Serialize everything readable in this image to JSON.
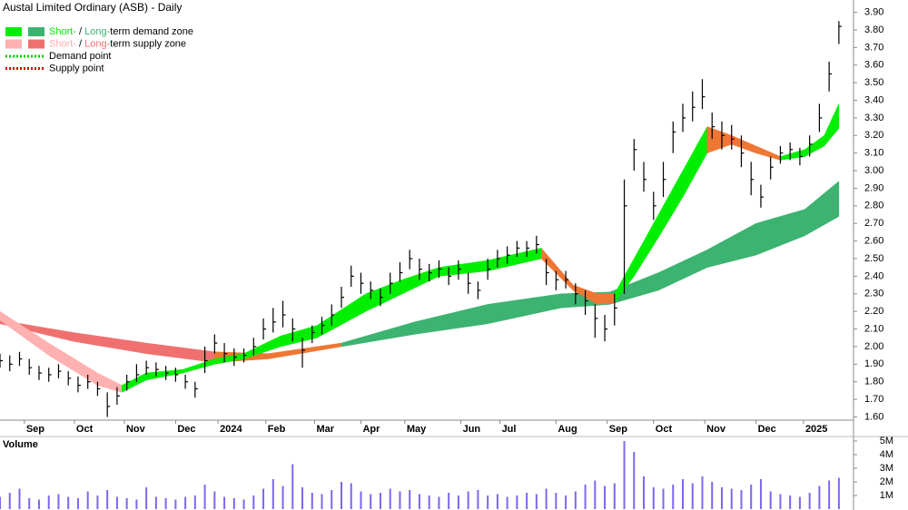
{
  "chart_data": {
    "type": "ohlc",
    "title": "Austal Limited Ordinary (ASB) - Daily",
    "legend": [
      {
        "label_parts": [
          "Short-",
          " / ",
          "Long-",
          "term demand zone"
        ],
        "colors": [
          "#00ee00",
          "#3cb371"
        ]
      },
      {
        "label_parts": [
          "Short-",
          " / ",
          "Long-",
          "term supply zone"
        ],
        "colors": [
          "#ffb0b0",
          "#f07070"
        ]
      },
      {
        "label": "Demand point",
        "color": "#00cc00",
        "style": "dotted"
      },
      {
        "label": "Supply point",
        "color": "#dd0000",
        "style": "dotted"
      }
    ],
    "xlim": [
      0,
      350
    ],
    "xticks": [
      {
        "value": 10,
        "label": "Sep"
      },
      {
        "value": 30.5,
        "label": "Oct"
      },
      {
        "value": 51,
        "label": "Nov"
      },
      {
        "value": 72,
        "label": "Dec"
      },
      {
        "value": 89.4,
        "label": "2024"
      },
      {
        "value": 109,
        "label": "Feb"
      },
      {
        "value": 129,
        "label": "Mar"
      },
      {
        "value": 148,
        "label": "Apr"
      },
      {
        "value": 166,
        "label": "May"
      },
      {
        "value": 189,
        "label": "Jun"
      },
      {
        "value": 205,
        "label": "Jul"
      },
      {
        "value": 228,
        "label": "Aug"
      },
      {
        "value": 249,
        "label": "Sep"
      },
      {
        "value": 268,
        "label": "Oct"
      },
      {
        "value": 289,
        "label": "Nov"
      },
      {
        "value": 310,
        "label": "Dec"
      },
      {
        "value": 329.5,
        "label": "2025"
      }
    ],
    "ylim": [
      1.52,
      3.97
    ],
    "yticks": [
      {
        "value": 1.6,
        "label": "1.60"
      },
      {
        "value": 1.7,
        "label": "1.70"
      },
      {
        "value": 1.8,
        "label": "1.80"
      },
      {
        "value": 1.9,
        "label": "1.90"
      },
      {
        "value": 2.0,
        "label": "2.00"
      },
      {
        "value": 2.1,
        "label": "2.10"
      },
      {
        "value": 2.2,
        "label": "2.20"
      },
      {
        "value": 2.3,
        "label": "2.30"
      },
      {
        "value": 2.4,
        "label": "2.40"
      },
      {
        "value": 2.5,
        "label": "2.50"
      },
      {
        "value": 2.6,
        "label": "2.60"
      },
      {
        "value": 2.7,
        "label": "2.70"
      },
      {
        "value": 2.8,
        "label": "2.80"
      },
      {
        "value": 2.9,
        "label": "2.90"
      },
      {
        "value": 3.0,
        "label": "3.00"
      },
      {
        "value": 3.1,
        "label": "3.10"
      },
      {
        "value": 3.2,
        "label": "3.20"
      },
      {
        "value": 3.3,
        "label": "3.30"
      },
      {
        "value": 3.4,
        "label": "3.40"
      },
      {
        "value": 3.5,
        "label": "3.50"
      },
      {
        "value": 3.6,
        "label": "3.60"
      },
      {
        "value": 3.7,
        "label": "3.70"
      },
      {
        "value": 3.8,
        "label": "3.80"
      },
      {
        "value": 3.9,
        "label": "3.90"
      }
    ],
    "bar_color": "#000000",
    "x": [
      0,
      4,
      8,
      12,
      16,
      20,
      24,
      28,
      32,
      36,
      40,
      44,
      48,
      52,
      56,
      60,
      64,
      68,
      72,
      76,
      80,
      84,
      88,
      92,
      96,
      100,
      104,
      108,
      112,
      116,
      120,
      124,
      128,
      132,
      136,
      140,
      144,
      148,
      152,
      156,
      160,
      164,
      168,
      172,
      176,
      180,
      184,
      188,
      192,
      196,
      200,
      204,
      208,
      212,
      216,
      220,
      224,
      228,
      232,
      236,
      240,
      244,
      248,
      252,
      256,
      260,
      264,
      268,
      272,
      276,
      280,
      284,
      288,
      292,
      296,
      300,
      304,
      308,
      312,
      316,
      320,
      324,
      328,
      332,
      336,
      340,
      344
    ],
    "high": [
      1.96,
      1.95,
      1.97,
      1.93,
      1.89,
      1.88,
      1.9,
      1.86,
      1.83,
      1.84,
      1.8,
      1.74,
      1.77,
      1.84,
      1.9,
      1.92,
      1.91,
      1.89,
      1.88,
      1.84,
      1.8,
      2.0,
      2.07,
      2.02,
      1.99,
      1.99,
      2.05,
      2.16,
      2.22,
      2.26,
      2.16,
      2.05,
      2.12,
      2.17,
      2.24,
      2.34,
      2.46,
      2.42,
      2.37,
      2.33,
      2.42,
      2.48,
      2.55,
      2.5,
      2.47,
      2.49,
      2.45,
      2.49,
      2.42,
      2.37,
      2.5,
      2.55,
      2.57,
      2.6,
      2.6,
      2.63,
      2.5,
      2.43,
      2.43,
      2.36,
      2.32,
      2.24,
      2.18,
      2.3,
      2.95,
      3.18,
      3.05,
      2.88,
      3.05,
      3.28,
      3.38,
      3.45,
      3.52,
      3.33,
      3.28,
      3.26,
      3.2,
      3.05,
      2.92,
      3.08,
      3.14,
      3.16,
      3.13,
      3.2,
      3.38,
      3.62,
      3.85
    ],
    "low": [
      1.88,
      1.86,
      1.89,
      1.84,
      1.81,
      1.8,
      1.82,
      1.78,
      1.74,
      1.76,
      1.72,
      1.6,
      1.67,
      1.75,
      1.8,
      1.84,
      1.83,
      1.81,
      1.8,
      1.76,
      1.71,
      1.85,
      1.96,
      1.91,
      1.89,
      1.91,
      1.95,
      2.04,
      2.08,
      2.11,
      2.03,
      1.88,
      2.02,
      2.07,
      2.12,
      2.22,
      2.34,
      2.3,
      2.27,
      2.23,
      2.3,
      2.37,
      2.44,
      2.38,
      2.37,
      2.39,
      2.35,
      2.38,
      2.3,
      2.27,
      2.38,
      2.45,
      2.47,
      2.51,
      2.51,
      2.53,
      2.35,
      2.32,
      2.33,
      2.24,
      2.18,
      2.05,
      2.03,
      2.12,
      2.3,
      3.0,
      2.88,
      2.72,
      2.85,
      3.1,
      3.22,
      3.28,
      3.35,
      3.18,
      3.12,
      3.12,
      3.02,
      2.86,
      2.79,
      2.95,
      3.04,
      3.06,
      3.03,
      3.08,
      3.22,
      3.45,
      3.72
    ],
    "close": [
      1.92,
      1.9,
      1.93,
      1.88,
      1.85,
      1.84,
      1.86,
      1.82,
      1.78,
      1.8,
      1.76,
      1.66,
      1.72,
      1.8,
      1.84,
      1.88,
      1.87,
      1.85,
      1.84,
      1.8,
      1.76,
      1.92,
      2.02,
      1.96,
      1.94,
      1.95,
      2.0,
      2.1,
      2.14,
      2.18,
      2.1,
      1.98,
      2.08,
      2.12,
      2.18,
      2.28,
      2.4,
      2.36,
      2.32,
      2.28,
      2.36,
      2.42,
      2.5,
      2.44,
      2.42,
      2.44,
      2.4,
      2.44,
      2.36,
      2.32,
      2.44,
      2.5,
      2.52,
      2.56,
      2.56,
      2.58,
      2.42,
      2.38,
      2.38,
      2.3,
      2.26,
      2.16,
      2.1,
      2.22,
      2.8,
      3.12,
      2.95,
      2.8,
      2.95,
      3.22,
      3.3,
      3.36,
      3.42,
      3.25,
      3.2,
      3.18,
      3.1,
      2.95,
      2.85,
      3.02,
      3.1,
      3.12,
      3.08,
      3.15,
      3.3,
      3.55,
      3.82
    ],
    "zones": [
      {
        "x": [
          0,
          30,
          60,
          88
        ],
        "upper": [
          2.15,
          2.08,
          2.02,
          1.97
        ],
        "lower": [
          2.13,
          2.03,
          1.96,
          1.91
        ],
        "color": "#f07070"
      },
      {
        "x": [
          88,
          110,
          140
        ],
        "upper": [
          1.97,
          1.96,
          2.02
        ],
        "lower": [
          1.91,
          1.93,
          2.0
        ],
        "color": "#ee7733"
      },
      {
        "x": [
          140,
          170,
          200,
          230,
          250,
          270,
          290,
          310,
          330,
          344
        ],
        "upper": [
          2.02,
          2.14,
          2.24,
          2.3,
          2.31,
          2.42,
          2.55,
          2.7,
          2.78,
          2.94
        ],
        "lower": [
          2.0,
          2.07,
          2.13,
          2.22,
          2.24,
          2.32,
          2.45,
          2.52,
          2.63,
          2.74
        ],
        "color": "#3cb371"
      },
      {
        "x": [
          0,
          20,
          40,
          50
        ],
        "upper": [
          2.2,
          2.02,
          1.85,
          1.78
        ],
        "lower": [
          2.15,
          1.95,
          1.78,
          1.74
        ],
        "color": "#ffb0b0"
      },
      {
        "x": [
          50,
          60,
          75,
          88,
          100,
          115,
          130,
          150,
          165,
          180,
          200,
          222
        ],
        "upper": [
          1.78,
          1.85,
          1.87,
          1.93,
          1.96,
          2.06,
          2.12,
          2.3,
          2.38,
          2.45,
          2.49,
          2.56
        ],
        "lower": [
          1.74,
          1.81,
          1.85,
          1.9,
          1.93,
          2.0,
          2.05,
          2.2,
          2.3,
          2.4,
          2.43,
          2.5
        ],
        "color": "#00ee00"
      },
      {
        "x": [
          222,
          235,
          245,
          252
        ],
        "upper": [
          2.56,
          2.35,
          2.3,
          2.3
        ],
        "lower": [
          2.5,
          2.32,
          2.24,
          2.25
        ],
        "color": "#ee7733"
      },
      {
        "x": [
          252,
          260,
          270,
          280,
          290
        ],
        "upper": [
          2.3,
          2.5,
          2.75,
          3.0,
          3.25
        ],
        "lower": [
          2.25,
          2.4,
          2.62,
          2.85,
          3.1
        ],
        "color": "#00ee00"
      },
      {
        "x": [
          290,
          300,
          310,
          320
        ],
        "upper": [
          3.25,
          3.2,
          3.14,
          3.08
        ],
        "lower": [
          3.1,
          3.15,
          3.1,
          3.06
        ],
        "color": "#ee7733"
      },
      {
        "x": [
          320,
          330,
          338,
          344
        ],
        "upper": [
          3.08,
          3.12,
          3.2,
          3.38
        ],
        "lower": [
          3.06,
          3.08,
          3.14,
          3.24
        ],
        "color": "#00ee00"
      }
    ],
    "volume": {
      "label": "Volume",
      "label_color": "#663399",
      "color": "#7b68ee",
      "ylim": [
        0,
        5200000
      ],
      "yticks": [
        {
          "value": 1000000,
          "label": "1M"
        },
        {
          "value": 2000000,
          "label": "2M"
        },
        {
          "value": 3000000,
          "label": "3M"
        },
        {
          "value": 4000000,
          "label": "4M"
        },
        {
          "value": 5000000,
          "label": "5M"
        }
      ],
      "values": [
        900000,
        1200000,
        1500000,
        800000,
        700000,
        1000000,
        1100000,
        900000,
        800000,
        1300000,
        1000000,
        1400000,
        900000,
        800000,
        700000,
        1600000,
        900000,
        800000,
        700000,
        900000,
        1000000,
        1800000,
        1300000,
        900000,
        800000,
        700000,
        1000000,
        1500000,
        2200000,
        1700000,
        3300000,
        1600000,
        1200000,
        1100000,
        1400000,
        2000000,
        1900000,
        1300000,
        1100000,
        1200000,
        1500000,
        1300000,
        1400000,
        1100000,
        1000000,
        900000,
        1200000,
        1000000,
        1300000,
        1400000,
        1000000,
        1100000,
        900000,
        1000000,
        1200000,
        1100000,
        1500000,
        1200000,
        1000000,
        1300000,
        1800000,
        2100000,
        1700000,
        1900000,
        5000000,
        4200000,
        2400000,
        1600000,
        1500000,
        1800000,
        2200000,
        1900000,
        2400000,
        2000000,
        1600000,
        1500000,
        1400000,
        1800000,
        2200000,
        1300000,
        1100000,
        1000000,
        900000,
        1200000,
        1700000,
        2100000,
        2300000
      ]
    }
  }
}
